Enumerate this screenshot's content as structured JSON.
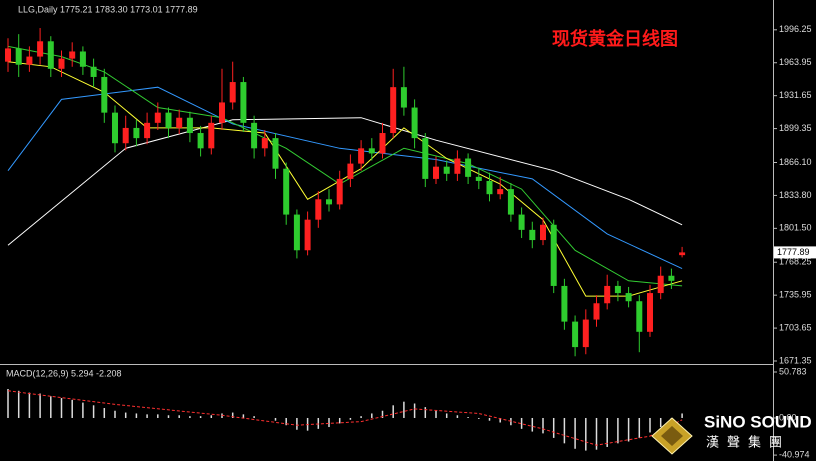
{
  "chart_data": {
    "type": "candlestick",
    "header": "LLG,Daily 1775.21 1783.30 1773.01 1777.89",
    "title": "现货黄金日线图",
    "up_color": "#ff2020",
    "down_color": "#2ecc2e",
    "open": [
      1965,
      1978,
      1962,
      1970,
      1985,
      1958,
      1968,
      1975,
      1960,
      1950,
      1915,
      1885,
      1900,
      1890,
      1905,
      1915,
      1900,
      1910,
      1895,
      1880,
      1905,
      1925,
      1945,
      1905,
      1880,
      1890,
      1860,
      1815,
      1780,
      1810,
      1830,
      1825,
      1850,
      1865,
      1880,
      1875,
      1895,
      1940,
      1920,
      1890,
      1850,
      1862,
      1855,
      1870,
      1852,
      1848,
      1835,
      1840,
      1815,
      1800,
      1790,
      1805,
      1745,
      1710,
      1685,
      1712,
      1728,
      1745,
      1738,
      1730,
      1700,
      1738,
      1755,
      1775.21
    ],
    "high": [
      1988,
      1992,
      1980,
      1998,
      1990,
      1976,
      1984,
      1980,
      1968,
      1958,
      1922,
      1912,
      1908,
      1915,
      1925,
      1920,
      1918,
      1916,
      1902,
      1912,
      1958,
      1965,
      1950,
      1912,
      1898,
      1895,
      1866,
      1820,
      1818,
      1838,
      1840,
      1858,
      1874,
      1888,
      1890,
      1905,
      1958,
      1960,
      1928,
      1895,
      1872,
      1868,
      1878,
      1875,
      1860,
      1856,
      1852,
      1846,
      1822,
      1808,
      1812,
      1810,
      1752,
      1716,
      1722,
      1736,
      1756,
      1750,
      1744,
      1736,
      1746,
      1764,
      1762,
      1783.3
    ],
    "low": [
      1955,
      1950,
      1955,
      1962,
      1950,
      1950,
      1960,
      1952,
      1940,
      1905,
      1876,
      1878,
      1882,
      1884,
      1898,
      1890,
      1894,
      1886,
      1872,
      1874,
      1898,
      1918,
      1896,
      1870,
      1872,
      1850,
      1805,
      1772,
      1775,
      1802,
      1818,
      1820,
      1842,
      1858,
      1868,
      1870,
      1890,
      1912,
      1880,
      1842,
      1845,
      1848,
      1848,
      1845,
      1840,
      1828,
      1830,
      1808,
      1792,
      1782,
      1785,
      1738,
      1702,
      1676,
      1678,
      1705,
      1722,
      1730,
      1724,
      1680,
      1695,
      1732,
      1742,
      1773.01
    ],
    "close": [
      1978,
      1962,
      1970,
      1985,
      1958,
      1968,
      1975,
      1960,
      1950,
      1915,
      1885,
      1900,
      1890,
      1905,
      1915,
      1900,
      1910,
      1895,
      1880,
      1905,
      1925,
      1945,
      1905,
      1880,
      1890,
      1860,
      1815,
      1780,
      1810,
      1830,
      1825,
      1850,
      1865,
      1880,
      1875,
      1895,
      1940,
      1920,
      1890,
      1850,
      1862,
      1855,
      1870,
      1852,
      1848,
      1835,
      1840,
      1815,
      1800,
      1790,
      1805,
      1745,
      1710,
      1685,
      1712,
      1728,
      1745,
      1738,
      1730,
      1700,
      1738,
      1755,
      1750,
      1777.89
    ],
    "ylim": [
      1669.4,
      2025.5
    ],
    "yticks": [
      1996.25,
      1963.95,
      1931.65,
      1899.35,
      {
        "value": 1866.1,
        "label": "1866.10"
      },
      {
        "value": 1833.8,
        "label": "1833.80"
      },
      {
        "value": 1801.5,
        "label": "1801.50"
      },
      1768.25,
      1735.95,
      1703.65,
      1671.35
    ],
    "lines": [
      {
        "color": "#ffffff",
        "x": [
          0,
          11,
          21,
          33,
          40,
          51,
          58,
          63
        ],
        "values": [
          1785,
          1880,
          1908,
          1910,
          1888,
          1858,
          1830,
          1805
        ]
      },
      {
        "color": "#3399ff",
        "x": [
          0,
          5,
          14,
          21,
          31,
          40,
          49,
          56,
          63
        ],
        "values": [
          1858,
          1928,
          1940,
          1904,
          1880,
          1869,
          1850,
          1796,
          1762
        ]
      },
      {
        "color": "#33cc33",
        "x": [
          0,
          5,
          9,
          14,
          20,
          26,
          31,
          37,
          43,
          48,
          53,
          58,
          63
        ],
        "values": [
          1980,
          1970,
          1955,
          1920,
          1910,
          1880,
          1845,
          1880,
          1865,
          1840,
          1780,
          1750,
          1745
        ]
      },
      {
        "color": "#ffff33",
        "x": [
          0,
          4,
          9,
          13,
          19,
          24,
          28,
          33,
          37,
          41,
          46,
          50,
          54,
          58,
          63
        ],
        "values": [
          1965,
          1960,
          1935,
          1900,
          1900,
          1895,
          1830,
          1860,
          1900,
          1870,
          1845,
          1810,
          1735,
          1735,
          1750
        ]
      }
    ],
    "macd": {
      "label": "MACD(12,26,9) 5.294 -2.208",
      "ylim": [
        -47.5,
        57.4
      ],
      "yticks": [
        50.783,
        {
          "value": 0,
          "label": "0.00"
        },
        -40.974
      ],
      "histogram": [
        32,
        30,
        28,
        27,
        24,
        22,
        20,
        17,
        14,
        11,
        8,
        6,
        5,
        4,
        4,
        3,
        3,
        2,
        2,
        3,
        5,
        6,
        4,
        2,
        0,
        -3,
        -8,
        -13,
        -14,
        -12,
        -10,
        -6,
        -2,
        2,
        5,
        8,
        14,
        18,
        16,
        12,
        8,
        5,
        3,
        1,
        -1,
        -3,
        -5,
        -8,
        -12,
        -15,
        -17,
        -22,
        -28,
        -34,
        -36,
        -35,
        -32,
        -28,
        -26,
        -22,
        -16,
        -10,
        -4,
        5
      ],
      "signal": {
        "color": "#ff3030",
        "x": [
          0,
          10,
          20,
          27,
          33,
          38,
          44,
          50,
          55,
          60,
          63
        ],
        "values": [
          30,
          15,
          3,
          -8,
          -4,
          10,
          5,
          -12,
          -30,
          -20,
          -2
        ]
      }
    }
  },
  "logo": {
    "name": "SiNO SOUND",
    "subtitle": "漢聲集團"
  }
}
